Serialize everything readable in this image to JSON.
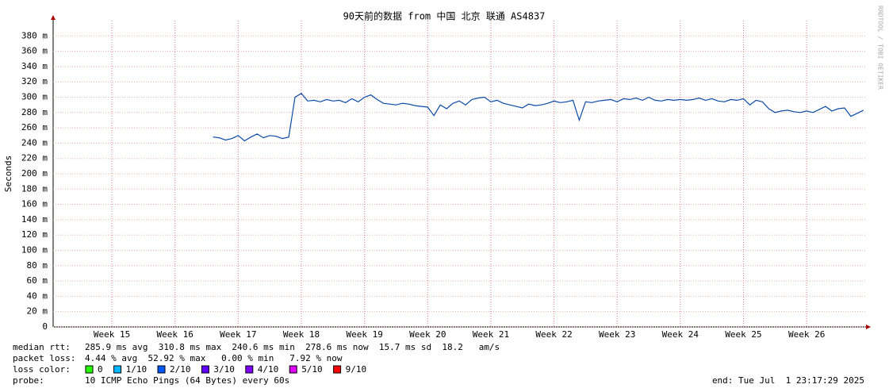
{
  "chart_data": {
    "type": "line",
    "title": "90天前的数据 from 中国 北京 联通 AS4837",
    "y_label": "Seconds",
    "watermark": "RRDTOOL / TOBI OETIKER",
    "grid": true,
    "xlim": [
      14.07,
      26.94
    ],
    "ylim": [
      0,
      400
    ],
    "xticks": [
      {
        "value": 15,
        "label": "Week 15"
      },
      {
        "value": 16,
        "label": "Week 16"
      },
      {
        "value": 17,
        "label": "Week 17"
      },
      {
        "value": 18,
        "label": "Week 18"
      },
      {
        "value": 19,
        "label": "Week 19"
      },
      {
        "value": 20,
        "label": "Week 20"
      },
      {
        "value": 21,
        "label": "Week 21"
      },
      {
        "value": 22,
        "label": "Week 22"
      },
      {
        "value": 23,
        "label": "Week 23"
      },
      {
        "value": 24,
        "label": "Week 24"
      },
      {
        "value": 25,
        "label": "Week 25"
      },
      {
        "value": 26,
        "label": "Week 26"
      }
    ],
    "yticks": [
      0,
      {
        "value": 20,
        "label": "20 m"
      },
      {
        "value": 40,
        "label": "40 m"
      },
      {
        "value": 60,
        "label": "60 m"
      },
      {
        "value": 80,
        "label": "80 m"
      },
      {
        "value": 100,
        "label": "100 m"
      },
      {
        "value": 120,
        "label": "120 m"
      },
      {
        "value": 140,
        "label": "140 m"
      },
      {
        "value": 160,
        "label": "160 m"
      },
      {
        "value": 180,
        "label": "180 m"
      },
      {
        "value": 200,
        "label": "200 m"
      },
      {
        "value": 220,
        "label": "220 m"
      },
      {
        "value": 240,
        "label": "240 m"
      },
      {
        "value": 260,
        "label": "260 m"
      },
      {
        "value": 280,
        "label": "280 m"
      },
      {
        "value": 300,
        "label": "300 m"
      },
      {
        "value": 320,
        "label": "320 m"
      },
      {
        "value": 340,
        "label": "340 m"
      },
      {
        "value": 360,
        "label": "360 m"
      },
      {
        "value": 380,
        "label": "380 m"
      }
    ],
    "x": [
      16.6,
      16.7,
      16.8,
      16.9,
      17.0,
      17.1,
      17.2,
      17.3,
      17.4,
      17.5,
      17.6,
      17.7,
      17.8,
      17.9,
      18.0,
      18.1,
      18.2,
      18.3,
      18.4,
      18.5,
      18.6,
      18.7,
      18.8,
      18.9,
      19.0,
      19.1,
      19.2,
      19.3,
      19.4,
      19.5,
      19.6,
      19.7,
      19.8,
      19.9,
      20.0,
      20.1,
      20.2,
      20.3,
      20.4,
      20.5,
      20.6,
      20.7,
      20.8,
      20.9,
      21.0,
      21.1,
      21.2,
      21.3,
      21.4,
      21.5,
      21.6,
      21.7,
      21.8,
      21.9,
      22.0,
      22.1,
      22.2,
      22.3,
      22.4,
      22.5,
      22.6,
      22.7,
      22.8,
      22.9,
      23.0,
      23.1,
      23.2,
      23.3,
      23.4,
      23.5,
      23.6,
      23.7,
      23.8,
      23.9,
      24.0,
      24.1,
      24.2,
      24.3,
      24.4,
      24.5,
      24.6,
      24.7,
      24.8,
      24.9,
      25.0,
      25.1,
      25.2,
      25.3,
      25.4,
      25.5,
      25.6,
      25.7,
      25.8,
      25.9,
      26.0,
      26.1,
      26.2,
      26.3,
      26.4,
      26.5,
      26.6,
      26.7,
      26.8,
      26.9
    ],
    "series": [
      {
        "color": "#0b4aa8",
        "values": [
          248,
          247,
          244,
          246,
          250,
          243,
          248,
          252,
          247,
          250,
          249,
          246,
          248,
          300,
          305,
          295,
          296,
          294,
          297,
          295,
          296,
          293,
          298,
          294,
          300,
          303,
          297,
          292,
          291,
          290,
          292,
          291,
          289,
          288,
          287,
          276,
          290,
          285,
          292,
          295,
          290,
          297,
          299,
          300,
          294,
          296,
          292,
          290,
          288,
          286,
          291,
          289,
          290,
          292,
          295,
          293,
          294,
          296,
          270,
          294,
          293,
          295,
          296,
          297,
          294,
          298,
          297,
          299,
          296,
          300,
          296,
          295,
          297,
          296,
          297,
          296,
          297,
          299,
          296,
          298,
          295,
          294,
          297,
          296,
          298,
          290,
          296,
          294,
          285,
          280,
          282,
          283,
          281,
          280,
          282,
          280,
          284,
          288,
          282,
          285,
          286,
          275,
          279,
          283
        ]
      }
    ],
    "stats": [
      {
        "label": "median rtt:",
        "text": "285.9 ms avg  310.8 ms max  240.6 ms min  278.6 ms now  15.7 ms sd  18.2   am/s"
      },
      {
        "label": "packet loss:",
        "text": "4.44 % avg  52.92 % max   0.00 % min   7.92 % now"
      }
    ],
    "loss_legend": {
      "label": "loss color:",
      "items": [
        {
          "color": "#26ff00",
          "label": "0"
        },
        {
          "color": "#00b8ff",
          "label": "1/10"
        },
        {
          "color": "#0059ff",
          "label": "2/10"
        },
        {
          "color": "#5e00ff",
          "label": "3/10"
        },
        {
          "color": "#7e00ff",
          "label": "4/10"
        },
        {
          "color": "#dd00ff",
          "label": "5/10"
        },
        {
          "color": "#ff0000",
          "label": "9/10"
        }
      ]
    },
    "probe": {
      "label": "probe:",
      "text": "10 ICMP Echo Pings (64 Bytes) every 60s"
    },
    "end": "end: Tue Jul  1 23:17:29 2025"
  }
}
